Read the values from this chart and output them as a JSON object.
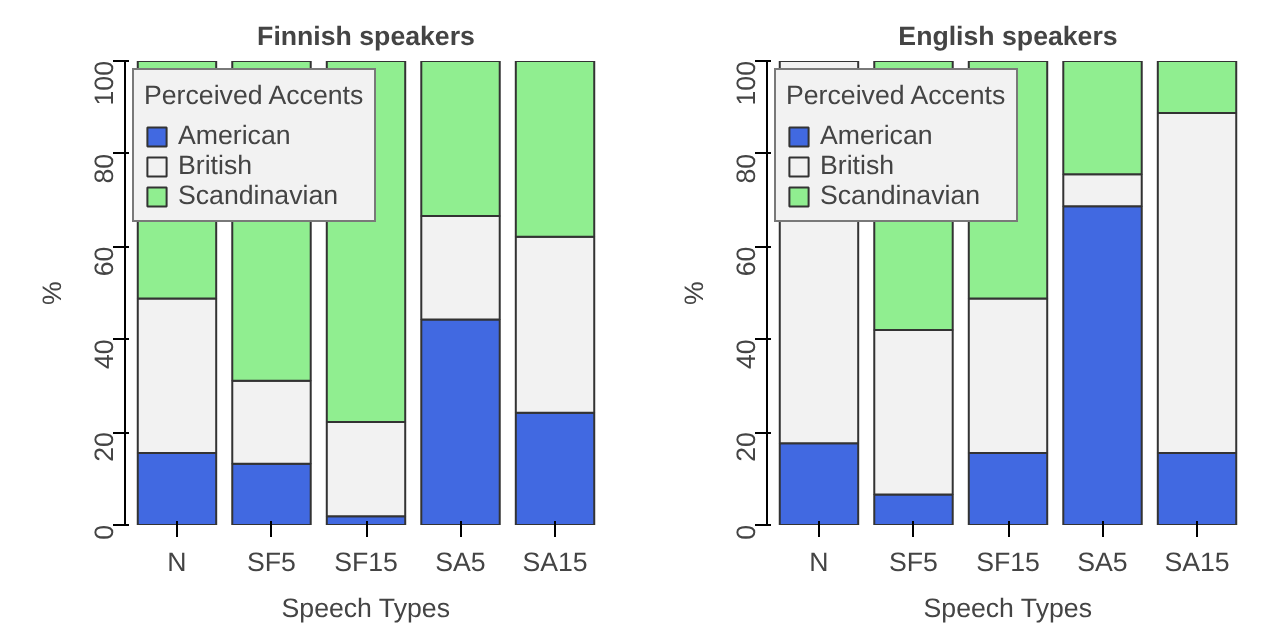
{
  "chart_data": [
    {
      "type": "bar",
      "title": "Finnish speakers",
      "xlabel": "Speech Types",
      "ylabel": "%",
      "legend_title": "Perceived Accents",
      "stacked": true,
      "legend": "top left",
      "grid": false,
      "categories": [
        "N",
        "SF5",
        "SF15",
        "SA5",
        "SA15"
      ],
      "ylim": [
        0,
        100
      ],
      "yticks": [
        0,
        20,
        40,
        60,
        80,
        100
      ],
      "series": [
        {
          "name": "American",
          "color": "#4169e1",
          "values": [
            15.5,
            13.2,
            1.9,
            44.3,
            24.2
          ]
        },
        {
          "name": "British",
          "color": "#f2f2f2",
          "values": [
            33.3,
            17.9,
            20.3,
            22.3,
            37.9
          ]
        },
        {
          "name": "Scandinavian",
          "color": "#90ee90",
          "values": [
            51.2,
            68.9,
            77.8,
            33.4,
            37.9
          ]
        }
      ]
    },
    {
      "type": "bar",
      "title": "English speakers",
      "xlabel": "Speech Types",
      "ylabel": "%",
      "legend_title": "Perceived Accents",
      "stacked": true,
      "legend": "top left",
      "grid": false,
      "categories": [
        "N",
        "SF5",
        "SF15",
        "SA5",
        "SA15"
      ],
      "ylim": [
        0,
        100
      ],
      "yticks": [
        0,
        20,
        40,
        60,
        80,
        100
      ],
      "series": [
        {
          "name": "American",
          "color": "#4169e1",
          "values": [
            17.6,
            6.6,
            15.5,
            68.7,
            15.5
          ]
        },
        {
          "name": "British",
          "color": "#f2f2f2",
          "values": [
            82.4,
            35.4,
            33.3,
            6.9,
            73.3
          ]
        },
        {
          "name": "Scandinavian",
          "color": "#90ee90",
          "values": [
            null,
            58.0,
            51.2,
            24.4,
            11.2
          ]
        }
      ]
    }
  ]
}
